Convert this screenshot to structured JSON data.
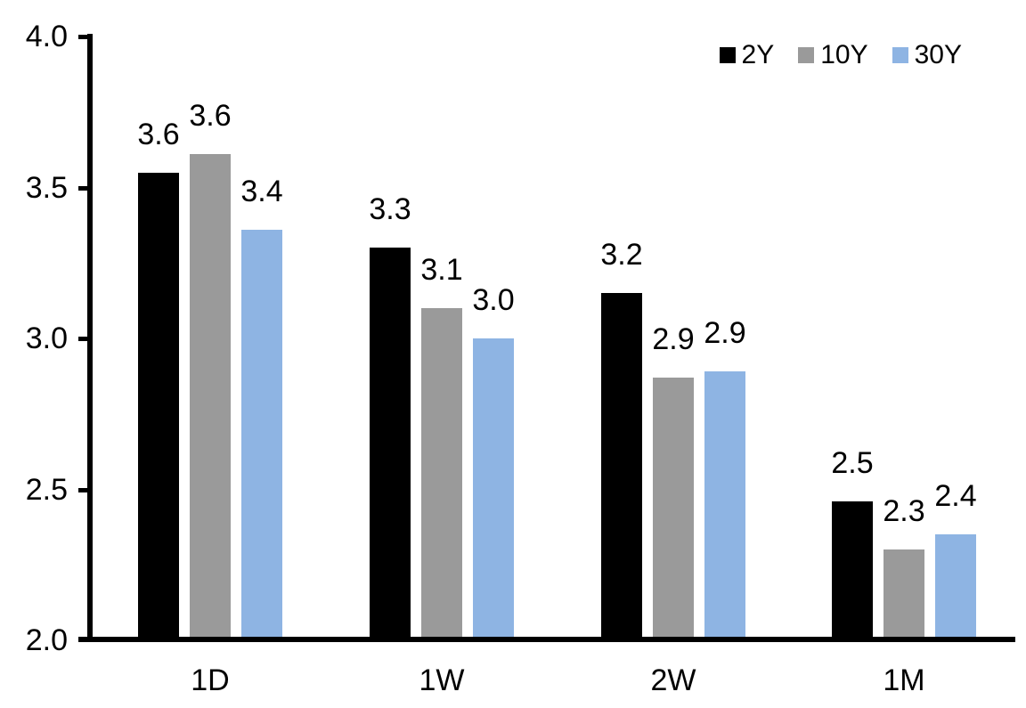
{
  "chart_data": {
    "type": "bar",
    "categories": [
      "1D",
      "1W",
      "2W",
      "1M"
    ],
    "series": [
      {
        "name": "2Y",
        "color": "#000000",
        "values": [
          3.55,
          3.3,
          3.15,
          2.46
        ],
        "data_labels": [
          "3.6",
          "3.3",
          "3.2",
          "2.5"
        ]
      },
      {
        "name": "10Y",
        "color": "#9A9A9A",
        "values": [
          3.61,
          3.1,
          2.87,
          2.3
        ],
        "data_labels": [
          "3.6",
          "3.1",
          "2.9",
          "2.3"
        ]
      },
      {
        "name": "30Y",
        "color": "#8EB4E3",
        "values": [
          3.36,
          3.0,
          2.89,
          2.35
        ],
        "data_labels": [
          "3.4",
          "3.0",
          "2.9",
          "2.4"
        ]
      }
    ],
    "ylim": [
      2.0,
      4.0
    ],
    "yticks": [
      4.0,
      3.5,
      3.0,
      2.5,
      2.0
    ],
    "ytick_labels": [
      "4.0",
      "3.5",
      "3.0",
      "2.5",
      "2.0"
    ],
    "grid": false,
    "legend": {
      "position": "top-right",
      "entries": [
        "2Y",
        "10Y",
        "30Y"
      ]
    },
    "axis_color": "#000000",
    "text_color": "#000000",
    "background": "#FFFFFF"
  }
}
